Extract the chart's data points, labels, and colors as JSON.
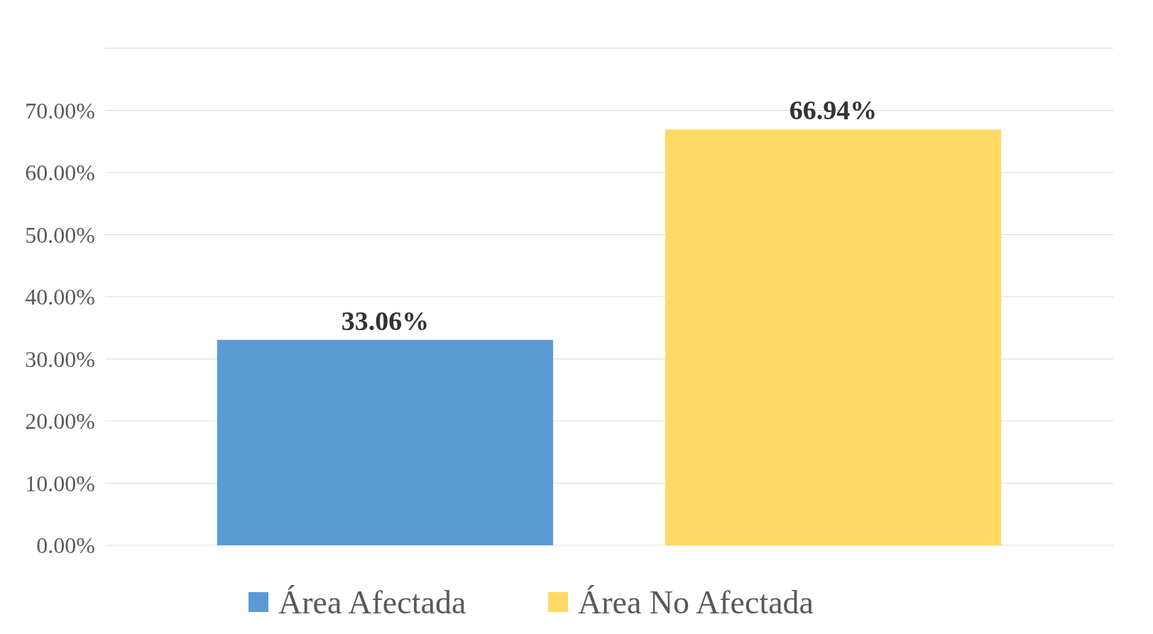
{
  "chart_data": {
    "type": "bar",
    "categories": [
      null,
      null
    ],
    "series": [
      {
        "name": "Área Afectada",
        "color": "#5b9bd5",
        "values": [
          33.06,
          null
        ],
        "value_labels": [
          "33.06%",
          null
        ]
      },
      {
        "name": "Área No Afectada",
        "color": "#ffd966",
        "values": [
          null,
          66.94
        ],
        "value_labels": [
          null,
          "66.94%"
        ]
      }
    ],
    "ylim": [
      0,
      80
    ],
    "yticks": [
      {
        "value": 0,
        "label": "0.00%"
      },
      {
        "value": 10,
        "label": "10.00%"
      },
      {
        "value": 20,
        "label": "20.00%"
      },
      {
        "value": 30,
        "label": "30.00%"
      },
      {
        "value": 40,
        "label": "40.00%"
      },
      {
        "value": 50,
        "label": "50.00%"
      },
      {
        "value": 60,
        "label": "60.00%"
      },
      {
        "value": 70,
        "label": "70.00%"
      },
      {
        "value": 80,
        "label": null
      }
    ],
    "grid": "y",
    "legend": "bottom"
  }
}
